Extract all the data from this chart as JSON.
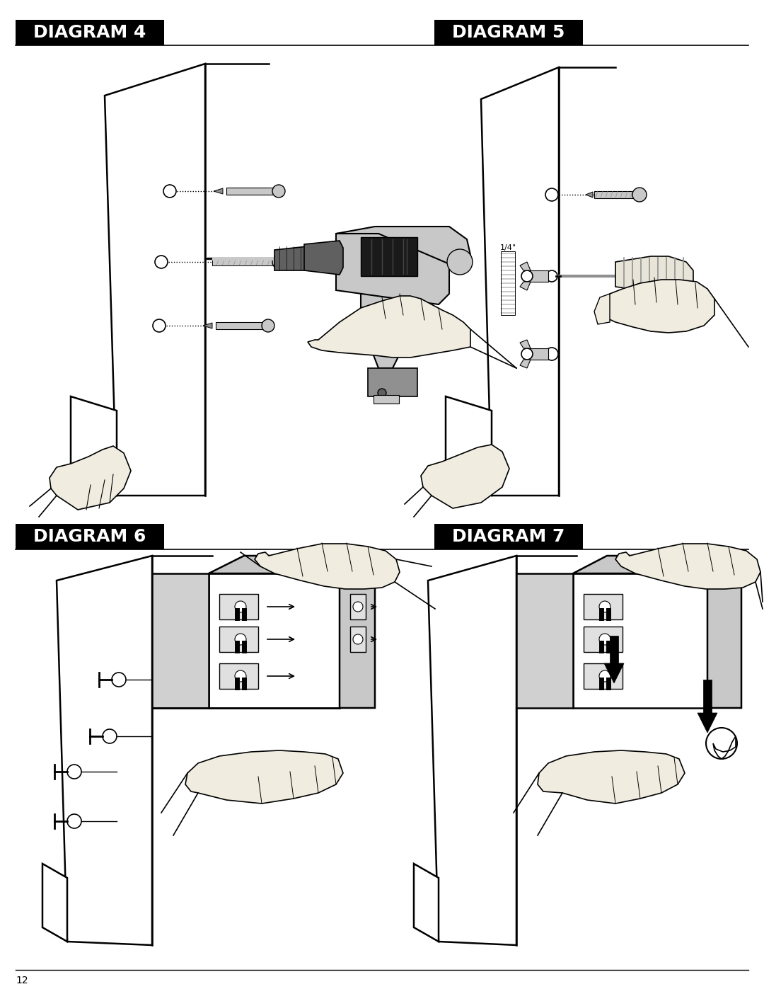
{
  "page_width": 10.8,
  "page_height": 13.97,
  "dpi": 100,
  "bg": "#ffffff",
  "title_bg": "#000000",
  "title_fg": "#ffffff",
  "titles": [
    "DIAGRAM 4",
    "DIAGRAM 5",
    "DIAGRAM 6",
    "DIAGRAM 7"
  ],
  "page_number": "12",
  "gray_light": "#c8c8c8",
  "gray_mid": "#909090",
  "gray_dark": "#606060",
  "gray_battery": "#707070",
  "skin": "#f0ece0",
  "black": "#000000",
  "white": "#ffffff"
}
